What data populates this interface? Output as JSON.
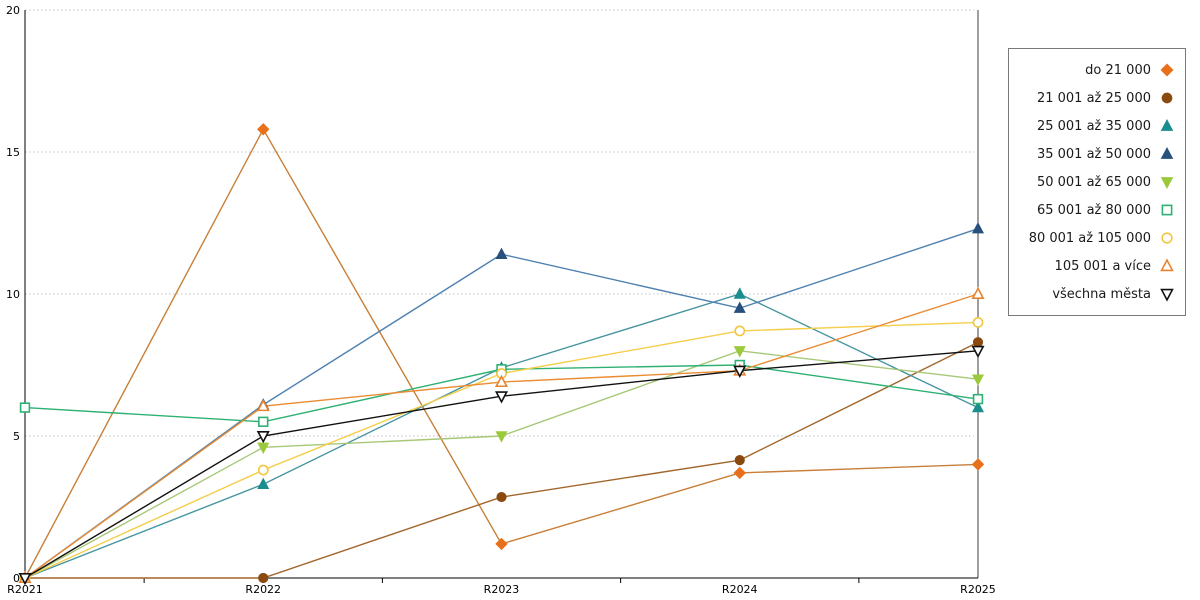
{
  "chart_data": {
    "type": "line",
    "title": "",
    "xlabel": "",
    "ylabel": "",
    "categories": [
      "R2021",
      "R2022",
      "R2023",
      "R2024",
      "R2025"
    ],
    "y_ticks": [
      0,
      5,
      10,
      15,
      20
    ],
    "ylim": [
      0,
      20
    ],
    "grid": "horizontal-dotted",
    "grid_color": "#c3c3c3",
    "axis_color": "#000000",
    "right_frame_color": "#3c3c3c",
    "legend_position": "right",
    "series": [
      {
        "name": "do 21 000",
        "marker": "diamond",
        "marker_style": "filled",
        "color": "#e8701a",
        "line_color": "#c87f3a",
        "values": [
          0,
          15.8,
          1.2,
          3.7,
          4.0
        ]
      },
      {
        "name": "21 001 až 25 000",
        "marker": "circle",
        "marker_style": "filled",
        "color": "#8a4a0f",
        "line_color": "#a2662b",
        "values": [
          0,
          0,
          2.85,
          4.15,
          8.3
        ]
      },
      {
        "name": "25 001 až 35 000",
        "marker": "triangle-up",
        "marker_style": "filled",
        "color": "#1a8e8e",
        "line_color": "#4795a0",
        "values": [
          0,
          3.3,
          7.4,
          10.0,
          6.0
        ]
      },
      {
        "name": "35 001 až 50 000",
        "marker": "triangle-up",
        "marker_style": "filled",
        "color": "#27507d",
        "line_color": "#4e81b0",
        "values": [
          0,
          6.1,
          11.4,
          9.5,
          12.3
        ]
      },
      {
        "name": "50 001 až 65 000",
        "marker": "triangle-down",
        "marker_style": "filled",
        "color": "#9bc93c",
        "line_color": "#a8c878",
        "values": [
          0,
          4.6,
          5.0,
          8.0,
          7.0
        ]
      },
      {
        "name": "65 001 až 80 000",
        "marker": "square",
        "marker_style": "open",
        "color": "#2eb173",
        "line_color": "#2eb173",
        "values": [
          6.0,
          5.5,
          7.35,
          7.5,
          6.3
        ]
      },
      {
        "name": "80 001 až 105 000",
        "marker": "circle",
        "marker_style": "open",
        "color": "#f2c63d",
        "line_color": "#f5ce4a",
        "values": [
          0,
          3.8,
          7.2,
          8.7,
          9.0
        ]
      },
      {
        "name": "105 001 a více",
        "marker": "triangle-up",
        "marker_style": "open",
        "color": "#e8832d",
        "line_color": "#ea8c33",
        "values": [
          0,
          6.05,
          6.9,
          7.3,
          10.0
        ]
      },
      {
        "name": "všechna města",
        "marker": "triangle-down",
        "marker_style": "open",
        "color": "#111111",
        "line_color": "#111111",
        "values": [
          0,
          5.0,
          6.4,
          7.3,
          8.0
        ]
      }
    ]
  }
}
